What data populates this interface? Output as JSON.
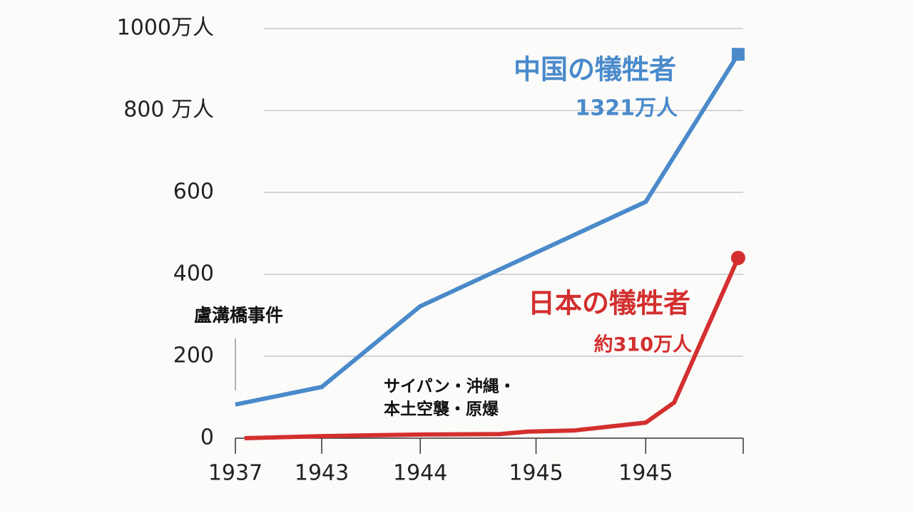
{
  "chart_data": {
    "type": "line",
    "xlim": [
      0,
      5
    ],
    "xticks": [
      {
        "value": 0,
        "label": "1937"
      },
      {
        "value": 0.85,
        "label": "1943"
      },
      {
        "value": 1.82,
        "label": "1944"
      },
      {
        "value": 2.96,
        "label": "1945"
      },
      {
        "value": 4.04,
        "label": "1945"
      }
    ],
    "ylim": [
      0,
      1000
    ],
    "yticks": [
      {
        "value": 0,
        "label": "0"
      },
      {
        "value": 200,
        "label": "200"
      },
      {
        "value": 400,
        "label": "400"
      },
      {
        "value": 600,
        "label": "600"
      },
      {
        "value": 800,
        "label": "800 万人"
      },
      {
        "value": 1000,
        "label": "1000万人"
      }
    ],
    "grid": true,
    "series": [
      {
        "name": "中国の犠牲者",
        "total": "1321万人",
        "color": "#4a8acb",
        "marker": "square",
        "x": [
          0,
          0.85,
          1.82,
          4.04,
          4.95
        ],
        "values": [
          82,
          125,
          322,
          577,
          937
        ]
      },
      {
        "name": "日本の犠牲者",
        "total": "約310万人",
        "color": "#d32f2f",
        "marker": "circle",
        "x": [
          0.09,
          0.85,
          1.82,
          2.6,
          2.88,
          3.34,
          4.04,
          4.32,
          4.95
        ],
        "values": [
          0,
          5,
          9,
          10,
          16,
          19,
          38,
          87,
          440
        ]
      }
    ],
    "annotations": [
      "盧溝橋事件",
      "サイパン・沖縄・",
      "本土空襲・原爆"
    ]
  }
}
